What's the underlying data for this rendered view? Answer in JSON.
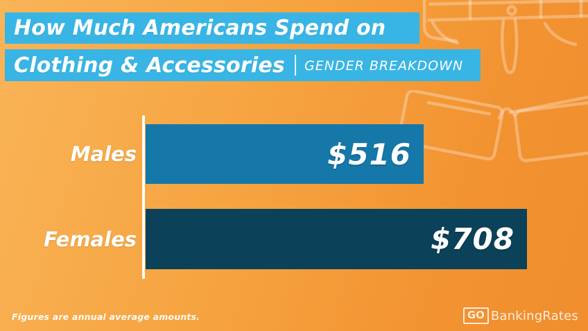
{
  "header": {
    "title_line1": "How Much Americans Spend on",
    "title_line2": "Clothing & Accessories",
    "subtitle": "GENDER BREAKDOWN"
  },
  "chart_data": {
    "type": "bar",
    "orientation": "horizontal",
    "title": "How Much Americans Spend on Clothing & Accessories",
    "subtitle": "Gender Breakdown",
    "categories": [
      "Males",
      "Females"
    ],
    "values": [
      516,
      708
    ],
    "value_labels": [
      "$516",
      "$708"
    ],
    "unit": "USD, annual average",
    "xlim": [
      0,
      720
    ],
    "bar_colors": [
      "#1678a9",
      "#0c4259"
    ],
    "grid": false,
    "legend": false,
    "value_label_position": "inside-end"
  },
  "footer": {
    "note": "Figures are annual average amounts.",
    "logo_go": "GO",
    "logo_text": "BankingRates"
  },
  "colors": {
    "banner": "#38b5e5",
    "males_bar": "#1678a9",
    "females_bar": "#0c4259",
    "background_light": "#f9b458",
    "background_dark": "#f08e2d",
    "text": "#ffffff"
  },
  "decorations": [
    "pants-outline-icon",
    "glasses-outline-icon"
  ]
}
